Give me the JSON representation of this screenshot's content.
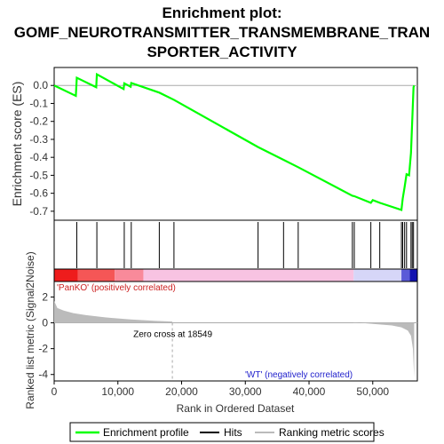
{
  "title_line1": "Enrichment plot:",
  "title_line2": "GOMF_NEUROTRANSMITTER_TRANSMEMBRANE_TRAN",
  "title_line3": "SPORTER_ACTIVITY",
  "colors": {
    "es_line": "#00ff00",
    "hits": "#000000",
    "metric_fill": "#bbbbbb",
    "pos_label": "#cc2222",
    "neg_label": "#2222cc",
    "zero_line": "#aaaaaa"
  },
  "chart_data": [
    {
      "type": "line",
      "name": "enrichment-score",
      "ylabel": "Enrichment score (ES)",
      "ylim": [
        -0.75,
        0.1
      ],
      "yticks": [
        0.0,
        -0.1,
        -0.2,
        -0.3,
        -0.4,
        -0.5,
        -0.6,
        -0.7
      ],
      "ytick_labels": [
        "0.0",
        "-0.1",
        "-0.2",
        "-0.3",
        "-0.4",
        "-0.5",
        "-0.6",
        "-0.7"
      ],
      "xlim": [
        0,
        57000
      ],
      "series": [
        {
          "name": "Enrichment profile",
          "x": [
            0,
            3400,
            3550,
            6600,
            6700,
            10900,
            11000,
            12000,
            12100,
            16500,
            18800,
            32000,
            36000,
            38300,
            46800,
            47100,
            49700,
            50000,
            51100,
            54500,
            54700,
            55000,
            55300,
            55700,
            56000,
            56200,
            56400,
            56500
          ],
          "y": [
            0.0,
            -0.058,
            0.043,
            -0.01,
            0.062,
            -0.02,
            0.012,
            -0.007,
            0.014,
            -0.04,
            -0.08,
            -0.343,
            -0.414,
            -0.455,
            -0.614,
            -0.616,
            -0.653,
            -0.638,
            -0.653,
            -0.693,
            -0.63,
            -0.565,
            -0.494,
            -0.5,
            -0.375,
            -0.192,
            -0.01,
            0.0
          ]
        }
      ]
    },
    {
      "type": "scatter",
      "name": "hits",
      "xlim": [
        0,
        57000
      ],
      "hit_positions": [
        3550,
        6700,
        11000,
        12100,
        16500,
        18800,
        32000,
        36000,
        38300,
        46800,
        47100,
        49700,
        51100,
        54500,
        54700,
        55000,
        55300,
        56000,
        56200,
        56400
      ]
    },
    {
      "type": "heatmap",
      "name": "ranking-bar",
      "xlim": [
        0,
        57000
      ],
      "segments": [
        {
          "x0": 0,
          "x1": 3700,
          "color": "#ee1c1c"
        },
        {
          "x0": 3700,
          "x1": 9500,
          "color": "#f55656"
        },
        {
          "x0": 9500,
          "x1": 14000,
          "color": "#f98a9a"
        },
        {
          "x0": 14000,
          "x1": 47000,
          "color": "#f8c3e2"
        },
        {
          "x0": 47000,
          "x1": 54500,
          "color": "#d6d6f8"
        },
        {
          "x0": 54500,
          "x1": 55800,
          "color": "#5b5bd8"
        },
        {
          "x0": 55800,
          "x1": 57000,
          "color": "#1212b0"
        }
      ]
    },
    {
      "type": "area",
      "name": "ranked-list-metric",
      "ylabel": "Ranked list metric (Signal2Noise)",
      "xlabel": "Rank in Ordered Dataset",
      "xlim": [
        0,
        57000
      ],
      "ylim": [
        -4.5,
        3.2
      ],
      "yticks": [
        2,
        0,
        -2,
        -4
      ],
      "ytick_labels": [
        "2",
        "0",
        "-2",
        "-4"
      ],
      "xticks": [
        0,
        10000,
        20000,
        30000,
        40000,
        50000
      ],
      "xtick_labels": [
        "0",
        "10,000",
        "20,000",
        "30,000",
        "40,000",
        "50,000"
      ],
      "x": [
        0,
        500,
        1500,
        3000,
        5000,
        8000,
        12000,
        16000,
        18549,
        18549,
        46900,
        47000,
        50000,
        53000,
        54500,
        55500,
        56000,
        56300,
        56500
      ],
      "y": [
        1.7,
        1.15,
        0.95,
        0.75,
        0.6,
        0.42,
        0.26,
        0.15,
        0.1,
        0.0,
        0.0,
        0.05,
        -0.08,
        -0.2,
        -0.35,
        -0.6,
        -1.0,
        -2.0,
        -4.2
      ],
      "zero_cross_label": "Zero cross at 18549",
      "zero_cross_x": 18549,
      "pos_label": "'PanKO' (positively correlated)",
      "neg_label": "'WT' (negatively correlated)"
    }
  ],
  "legend": {
    "items": [
      {
        "label": "Enrichment profile"
      },
      {
        "label": "Hits"
      },
      {
        "label": "Ranking metric scores"
      }
    ]
  }
}
